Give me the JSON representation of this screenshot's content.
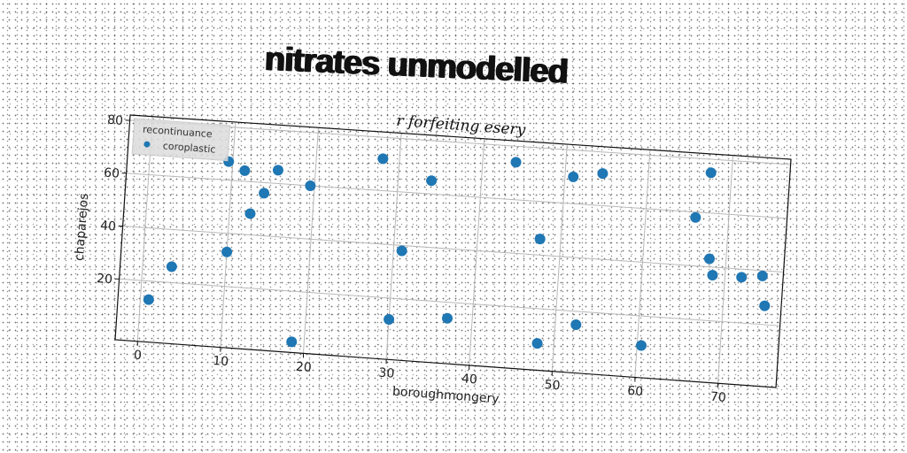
{
  "title": "nitrates unmodelled",
  "chart_data": {
    "type": "scatter",
    "title": "nitrates unmodelled",
    "subtitle": "r forfeiting esery",
    "xlabel": "boroughmongery",
    "ylabel": "chaparejos",
    "xlim": [
      -2.7,
      77
    ],
    "ylim": [
      -3,
      82
    ],
    "xticks": [
      0,
      10,
      20,
      30,
      40,
      50,
      60,
      70
    ],
    "yticks": [
      20,
      40,
      60,
      80
    ],
    "grid": true,
    "legend": {
      "title": "recontinuance",
      "placement": "top-left",
      "entries": [
        "coroplastic"
      ]
    },
    "series": [
      {
        "name": "coroplastic",
        "color": "#1f77b4",
        "x": [
          1,
          3.5,
          9.5,
          10,
          11.5,
          12.5,
          14,
          15.5,
          18.5,
          19.5,
          28,
          30,
          31,
          34,
          37,
          44,
          47.5,
          48,
          51,
          52.5,
          54.5,
          60.5,
          66,
          67.5,
          68,
          68.5,
          72,
          74.5,
          75
        ],
        "y": [
          13,
          26,
          67,
          33,
          64,
          48,
          56,
          65,
          1,
          60,
          72,
          12,
          38,
          65,
          14,
          74,
          46,
          7,
          70,
          15,
          72,
          9,
          58,
          75,
          43,
          37,
          37,
          38,
          27
        ]
      }
    ]
  }
}
